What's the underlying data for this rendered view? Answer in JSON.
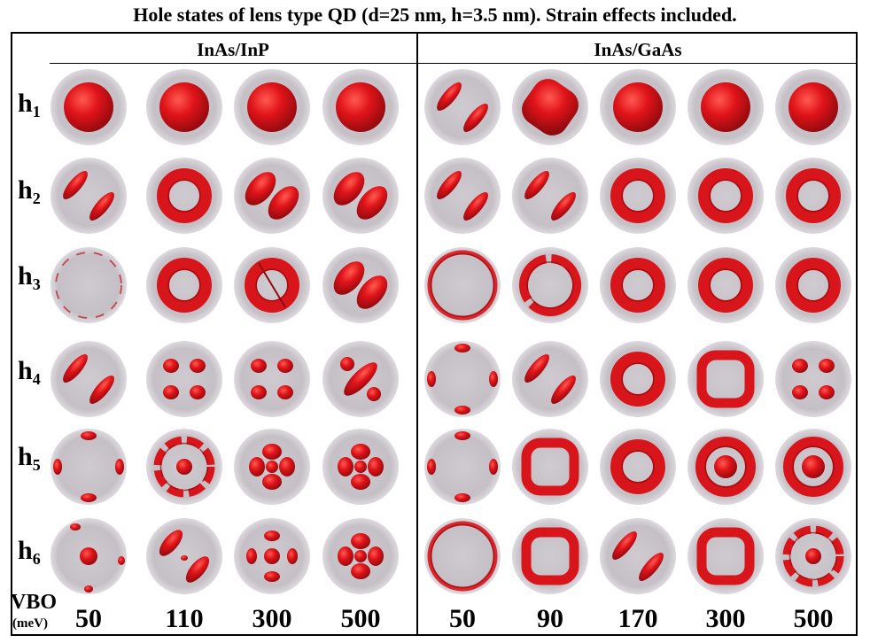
{
  "title": "Hole states of lens type QD (d=25 nm, h=3.5 nm). Strain effects included.",
  "groups": [
    {
      "name": "InAs/InP",
      "vbo": [
        "50",
        "110",
        "300",
        "500"
      ]
    },
    {
      "name": "InAs/GaAs",
      "vbo": [
        "50",
        "90",
        "170",
        "300",
        "500"
      ]
    }
  ],
  "rows": [
    {
      "base": "h",
      "sub": "1"
    },
    {
      "base": "h",
      "sub": "2"
    },
    {
      "base": "h",
      "sub": "3"
    },
    {
      "base": "h",
      "sub": "4"
    },
    {
      "base": "h",
      "sub": "5"
    },
    {
      "base": "h",
      "sub": "6"
    }
  ],
  "axis_label": {
    "text": "VBO",
    "unit": "(meV)"
  },
  "colors": {
    "background_disk": "#c9c3c9",
    "isosurface": "#e0141a",
    "isosurface_dark": "#8e0a0e"
  },
  "cells": [
    [
      "blob",
      "blob",
      "blob",
      "blob",
      "lobes2",
      "rounded-square",
      "blob",
      "blob",
      "blob"
    ],
    [
      "lobes2",
      "ring",
      "lobes2-split",
      "lobes2-split",
      "lobes2",
      "lobes2",
      "ring",
      "ring",
      "ring"
    ],
    [
      "faint-ring",
      "ring",
      "ring-split",
      "lobes2-split",
      "thin-ring",
      "ring-broken",
      "ring",
      "ring",
      "ring"
    ],
    [
      "lobes2",
      "lobes4",
      "lobes4",
      "lobes-dumbbell",
      "edge4",
      "lobes2",
      "ring",
      "ring-square",
      "lobes4"
    ],
    [
      "edge4",
      "ring-dot",
      "lobes-cross",
      "lobes-cross",
      "edge4",
      "ring-square",
      "ring",
      "ring-wavy",
      "ring-wavy"
    ],
    [
      "dot-edge",
      "lobes2-dot",
      "dot-lobes4",
      "lobes-cross",
      "thin-ring",
      "ring-square",
      "lobes2",
      "ring-square",
      "ring-dot"
    ]
  ]
}
